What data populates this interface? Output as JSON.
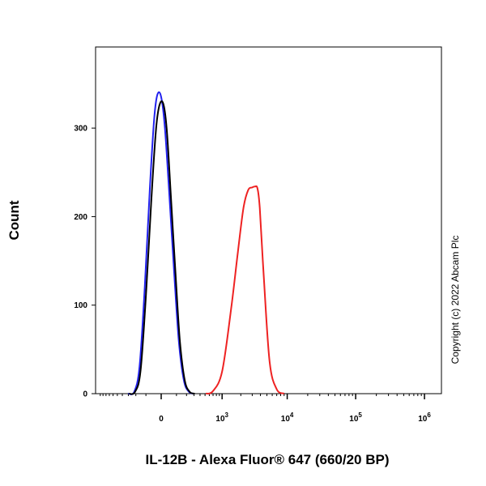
{
  "chart_data": {
    "type": "line",
    "title": "",
    "xlabel": "IL-12B - Alexa Fluor® 647 (660/20 BP)",
    "ylabel": "Count",
    "x_scale": "biexponential",
    "x_tick_labels": [
      {
        "value": 0,
        "base": "0",
        "exp": ""
      },
      {
        "value": 1000,
        "base": "10",
        "exp": "3"
      },
      {
        "value": 10000,
        "base": "10",
        "exp": "4"
      },
      {
        "value": 100000,
        "base": "10",
        "exp": "5"
      },
      {
        "value": 1000000,
        "base": "10",
        "exp": "6"
      }
    ],
    "y_ticks": [
      0,
      100,
      200,
      300
    ],
    "ylim": [
      0,
      350
    ],
    "grid": false,
    "legend": "none",
    "series": [
      {
        "color": "#2222ee",
        "x": [
          -300,
          -220,
          -160,
          -110,
          -70,
          -40,
          -20,
          0,
          20,
          45,
          80,
          120,
          170,
          230,
          300
        ],
        "y": [
          0,
          2,
          30,
          120,
          230,
          310,
          338,
          335,
          300,
          230,
          140,
          60,
          15,
          2,
          0
        ]
      },
      {
        "color": "#000000",
        "x": [
          -290,
          -210,
          -150,
          -100,
          -60,
          -30,
          -10,
          10,
          30,
          55,
          90,
          130,
          180,
          240,
          310
        ],
        "y": [
          0,
          2,
          25,
          110,
          215,
          295,
          325,
          328,
          300,
          230,
          140,
          60,
          15,
          2,
          0
        ]
      },
      {
        "color": "#ee2222",
        "x": [
          520,
          700,
          1000,
          1400,
          1800,
          2200,
          2600,
          3000,
          3300,
          3600,
          3900,
          4500,
          5500,
          7000,
          9000
        ],
        "y": [
          0,
          3,
          25,
          95,
          160,
          210,
          230,
          233,
          234,
          232,
          210,
          130,
          35,
          5,
          0
        ]
      }
    ]
  },
  "copyright": "Copyright (c) 2022 Abcam Plc"
}
